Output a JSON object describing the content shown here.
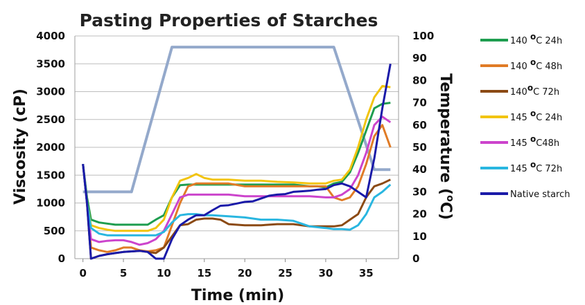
{
  "chart_data": {
    "type": "line",
    "title": "Pasting Properties of Starches",
    "xlabel": "Time (min)",
    "ylabel": "Viscosity (cP)",
    "y2label_text": "Temperature (",
    "y2label_sup": "o",
    "y2label_end": "C)",
    "xlim": [
      -1,
      39
    ],
    "ylim": [
      0,
      4000
    ],
    "y2lim": [
      0,
      100
    ],
    "x_ticks": [
      0,
      5,
      10,
      15,
      20,
      25,
      30,
      35
    ],
    "y_ticks": [
      0,
      500,
      1000,
      1500,
      2000,
      2500,
      3000,
      3500,
      4000
    ],
    "y2_ticks": [
      0,
      10,
      20,
      30,
      40,
      50,
      60,
      70,
      80,
      90,
      100
    ],
    "grid": true,
    "legend_position": "right",
    "temperature_series": {
      "axis": "right",
      "color": "#94a9cb",
      "x": [
        0,
        6,
        11,
        31,
        36,
        38
      ],
      "values": [
        30,
        30,
        95,
        95,
        40,
        40
      ]
    },
    "series": [
      {
        "name": "140 °C 24h",
        "legend": {
          "pre": "140 ",
          "sup": "o",
          "post": "C 24h"
        },
        "color": "#1e9d4f",
        "x": [
          0,
          0.5,
          1,
          2,
          3,
          4,
          5,
          6,
          7,
          8,
          9,
          10,
          11,
          12,
          13,
          14,
          15,
          16,
          18,
          20,
          22,
          24,
          26,
          28,
          29,
          30,
          31,
          32,
          33,
          34,
          35,
          36,
          37,
          38
        ],
        "values": [
          1700,
          1100,
          700,
          650,
          630,
          610,
          610,
          610,
          610,
          610,
          700,
          780,
          1100,
          1320,
          1330,
          1330,
          1330,
          1330,
          1330,
          1330,
          1330,
          1330,
          1330,
          1300,
          1300,
          1280,
          1350,
          1380,
          1550,
          1900,
          2300,
          2700,
          2780,
          2800
        ]
      },
      {
        "name": "140 °C 48h",
        "legend": {
          "pre": "140 ",
          "sup": "o",
          "post": "C 48h"
        },
        "color": "#e07b26",
        "x": [
          0,
          0.5,
          1,
          2,
          3,
          4,
          5,
          6,
          7,
          8,
          9,
          10,
          11,
          12,
          13,
          14,
          15,
          16,
          18,
          20,
          22,
          24,
          26,
          28,
          30,
          31,
          32,
          33,
          34,
          35,
          36,
          37,
          38
        ],
        "values": [
          1700,
          1000,
          200,
          150,
          120,
          150,
          200,
          200,
          150,
          130,
          150,
          200,
          600,
          1000,
          1300,
          1350,
          1350,
          1350,
          1350,
          1300,
          1300,
          1300,
          1300,
          1300,
          1300,
          1100,
          1050,
          1100,
          1300,
          1700,
          2200,
          2400,
          2000
        ]
      },
      {
        "name": "140 °C 72h",
        "legend": {
          "pre": "140",
          "sup": "o",
          "post": "C 72h"
        },
        "color": "#8b4a14",
        "x": [
          0,
          0.5,
          1,
          2,
          3,
          4,
          5,
          6,
          7,
          8,
          9,
          10,
          11,
          12,
          13,
          14,
          15,
          16,
          17,
          18,
          20,
          22,
          24,
          26,
          28,
          30,
          31,
          32,
          33,
          34,
          35,
          36,
          37,
          38
        ],
        "values": [
          1700,
          1000,
          0,
          50,
          80,
          100,
          120,
          130,
          140,
          120,
          100,
          200,
          400,
          600,
          620,
          700,
          720,
          720,
          700,
          620,
          600,
          600,
          620,
          620,
          580,
          580,
          580,
          600,
          700,
          800,
          1100,
          1300,
          1350,
          1420
        ]
      },
      {
        "name": "145 °C 24h",
        "legend": {
          "pre": "145 ",
          "sup": "o",
          "post": "C 24h"
        },
        "color": "#f2c40f",
        "x": [
          0,
          0.5,
          1,
          2,
          3,
          4,
          5,
          6,
          7,
          8,
          9,
          10,
          11,
          12,
          13,
          14,
          15,
          16,
          18,
          20,
          22,
          24,
          26,
          28,
          30,
          31,
          32,
          33,
          34,
          35,
          36,
          37,
          38
        ],
        "values": [
          1700,
          1000,
          600,
          550,
          520,
          500,
          500,
          500,
          500,
          500,
          550,
          700,
          1100,
          1400,
          1450,
          1520,
          1450,
          1420,
          1420,
          1400,
          1400,
          1380,
          1370,
          1350,
          1350,
          1400,
          1420,
          1600,
          2000,
          2500,
          2900,
          3100,
          3080
        ]
      },
      {
        "name": "145 °C48h",
        "legend": {
          "pre": "145 ",
          "sup": "o",
          "post": "C48h"
        },
        "color": "#cc44cc",
        "x": [
          0,
          0.5,
          1,
          2,
          3,
          4,
          5,
          6,
          7,
          8,
          9,
          10,
          11,
          12,
          13,
          14,
          15,
          16,
          18,
          20,
          22,
          24,
          26,
          28,
          30,
          31,
          32,
          33,
          34,
          35,
          36,
          37,
          38
        ],
        "values": [
          1700,
          1000,
          350,
          300,
          320,
          330,
          330,
          300,
          250,
          280,
          350,
          500,
          800,
          1100,
          1150,
          1150,
          1150,
          1150,
          1150,
          1120,
          1120,
          1120,
          1120,
          1120,
          1100,
          1100,
          1150,
          1250,
          1500,
          1900,
          2400,
          2550,
          2450
        ]
      },
      {
        "name": "145 °C 72h",
        "legend": {
          "pre": "145 ",
          "sup": "o",
          "post": "C 72h"
        },
        "color": "#29b6e0",
        "x": [
          0,
          0.5,
          1,
          2,
          3,
          4,
          5,
          6,
          7,
          8,
          9,
          10,
          11,
          12,
          13,
          14,
          15,
          16,
          18,
          20,
          22,
          24,
          26,
          28,
          30,
          31,
          32,
          33,
          34,
          35,
          36,
          37,
          38
        ],
        "values": [
          1700,
          1000,
          550,
          450,
          420,
          420,
          420,
          420,
          420,
          420,
          420,
          480,
          650,
          780,
          800,
          800,
          780,
          780,
          760,
          740,
          700,
          700,
          680,
          580,
          550,
          530,
          530,
          520,
          600,
          800,
          1100,
          1200,
          1330
        ]
      },
      {
        "name": "Native starch",
        "legend": {
          "pre": "Native starch",
          "sup": "",
          "post": ""
        },
        "color": "#1a1aa8",
        "x": [
          0,
          0.5,
          1,
          2,
          3,
          4,
          5,
          6,
          7,
          8,
          9,
          10,
          11,
          12,
          13,
          14,
          15,
          16,
          17,
          18,
          19,
          20,
          21,
          22,
          23,
          24,
          25,
          26,
          27,
          28,
          29,
          30,
          31,
          32,
          33,
          34,
          35,
          36,
          37,
          38
        ],
        "values": [
          1700,
          1000,
          0,
          50,
          80,
          100,
          120,
          130,
          140,
          120,
          0,
          0,
          350,
          600,
          700,
          780,
          780,
          870,
          950,
          960,
          990,
          1020,
          1030,
          1080,
          1130,
          1150,
          1160,
          1200,
          1210,
          1220,
          1240,
          1250,
          1320,
          1350,
          1300,
          1200,
          1100,
          1800,
          2700,
          3500
        ]
      }
    ]
  }
}
